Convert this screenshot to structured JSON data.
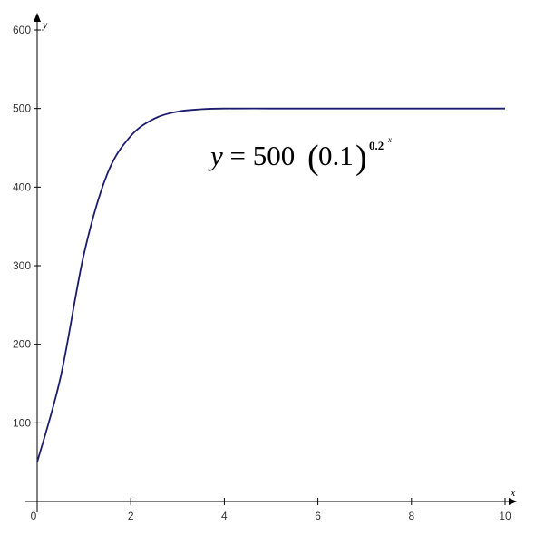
{
  "chart_data": {
    "type": "line",
    "title": "",
    "xlabel": "x",
    "ylabel": "y",
    "xlim": [
      0,
      10
    ],
    "ylim": [
      0,
      600
    ],
    "xticks": [
      0,
      2,
      4,
      6,
      8,
      10
    ],
    "yticks": [
      100,
      200,
      300,
      400,
      500,
      600
    ],
    "x_tick_labels": [
      "0",
      "2",
      "4",
      "6",
      "8",
      "10"
    ],
    "y_tick_labels": [
      "100",
      "200",
      "300",
      "400",
      "500",
      "600"
    ],
    "grid": false,
    "series": [
      {
        "color": "#1c1c6e",
        "x": [
          0,
          0.5,
          1,
          1.5,
          2,
          2.5,
          3,
          3.5,
          4,
          5,
          6,
          7,
          8,
          9,
          10
        ],
        "y": [
          50,
          158,
          315,
          417,
          465,
          487,
          496,
          499,
          500,
          500,
          500,
          500,
          500,
          500,
          500
        ]
      }
    ],
    "annotations": [
      {
        "text": "y = 500(0.1)^(0.2^x)",
        "parts": {
          "lhs": "y",
          "equals": " = ",
          "coef": "500",
          "open_paren": "(",
          "base": "0.1",
          "close_paren": ")",
          "exp_base": "0.2",
          "exp_exp": "x"
        }
      }
    ]
  }
}
